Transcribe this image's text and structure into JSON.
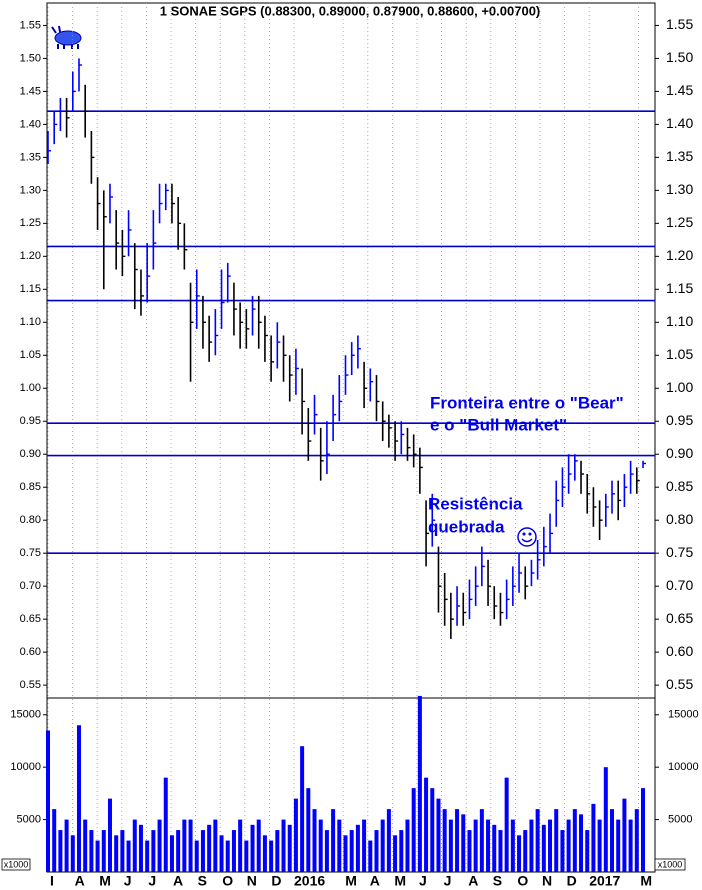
{
  "chart_data": [
    {
      "type": "ohlc",
      "title": "1 SONAE SGPS (0.88300, 0.89000, 0.87900, 0.88600, +0.00700)",
      "categories": [
        "I",
        "A",
        "M",
        "J",
        "J",
        "A",
        "S",
        "O",
        "N",
        "D",
        "2016",
        "M",
        "A",
        "M",
        "J",
        "J",
        "A",
        "S",
        "O",
        "N",
        "D",
        "2017",
        "M"
      ],
      "high": [
        1.39,
        1.42,
        1.44,
        1.44,
        1.48,
        1.5,
        1.46,
        1.39,
        1.32,
        1.3,
        1.31,
        1.27,
        1.24,
        1.27,
        1.22,
        1.18,
        1.22,
        1.27,
        1.31,
        1.31,
        1.31,
        1.29,
        1.25,
        1.16,
        1.18,
        1.14,
        1.11,
        1.12,
        1.18,
        1.19,
        1.16,
        1.13,
        1.12,
        1.14,
        1.14,
        1.11,
        1.08,
        1.1,
        1.08,
        1.05,
        1.06,
        1.03,
        0.97,
        0.99,
        0.94,
        0.95,
        0.99,
        1.02,
        1.05,
        1.07,
        1.08,
        1.04,
        1.03,
        1.02,
        0.98,
        0.96,
        0.95,
        0.95,
        0.94,
        0.93,
        0.91,
        0.83,
        0.84,
        0.76,
        0.72,
        0.69,
        0.7,
        0.69,
        0.71,
        0.73,
        0.76,
        0.74,
        0.7,
        0.69,
        0.71,
        0.73,
        0.75,
        0.73,
        0.74,
        0.77,
        0.79,
        0.81,
        0.86,
        0.88,
        0.9,
        0.9,
        0.89,
        0.87,
        0.85,
        0.83,
        0.84,
        0.86,
        0.86,
        0.87,
        0.89,
        0.88,
        0.89
      ],
      "low": [
        1.34,
        1.37,
        1.39,
        1.38,
        1.42,
        1.45,
        1.38,
        1.31,
        1.24,
        1.15,
        1.25,
        1.18,
        1.17,
        1.2,
        1.12,
        1.11,
        1.13,
        1.18,
        1.25,
        1.27,
        1.25,
        1.21,
        1.18,
        1.01,
        1.09,
        1.06,
        1.04,
        1.05,
        1.09,
        1.13,
        1.08,
        1.06,
        1.06,
        1.08,
        1.06,
        1.04,
        1.01,
        1.03,
        1.01,
        0.98,
        0.99,
        0.93,
        0.89,
        0.93,
        0.86,
        0.87,
        0.92,
        0.95,
        0.99,
        1.02,
        1.03,
        0.97,
        0.98,
        0.95,
        0.92,
        0.91,
        0.89,
        0.9,
        0.89,
        0.88,
        0.84,
        0.73,
        0.76,
        0.66,
        0.64,
        0.62,
        0.64,
        0.64,
        0.65,
        0.67,
        0.7,
        0.67,
        0.65,
        0.64,
        0.65,
        0.67,
        0.69,
        0.68,
        0.7,
        0.71,
        0.73,
        0.75,
        0.79,
        0.82,
        0.84,
        0.86,
        0.84,
        0.81,
        0.79,
        0.77,
        0.79,
        0.81,
        0.8,
        0.82,
        0.84,
        0.84,
        0.879
      ],
      "close": [
        1.36,
        1.4,
        1.42,
        1.41,
        1.45,
        1.49,
        1.42,
        1.35,
        1.28,
        1.26,
        1.29,
        1.22,
        1.2,
        1.24,
        1.18,
        1.14,
        1.17,
        1.22,
        1.28,
        1.3,
        1.28,
        1.25,
        1.21,
        1.1,
        1.14,
        1.1,
        1.07,
        1.08,
        1.13,
        1.17,
        1.12,
        1.1,
        1.09,
        1.12,
        1.1,
        1.08,
        1.04,
        1.07,
        1.05,
        1.02,
        1.03,
        0.98,
        0.92,
        0.96,
        0.89,
        0.9,
        0.96,
        0.98,
        1.02,
        1.05,
        1.06,
        1.0,
        1.01,
        0.98,
        0.95,
        0.94,
        0.92,
        0.93,
        0.91,
        0.9,
        0.88,
        0.78,
        0.8,
        0.7,
        0.68,
        0.65,
        0.67,
        0.66,
        0.68,
        0.7,
        0.73,
        0.7,
        0.67,
        0.66,
        0.68,
        0.7,
        0.72,
        0.7,
        0.72,
        0.74,
        0.76,
        0.78,
        0.83,
        0.85,
        0.87,
        0.89,
        0.87,
        0.84,
        0.82,
        0.8,
        0.82,
        0.84,
        0.83,
        0.85,
        0.87,
        0.86,
        0.886
      ],
      "up_color": "#0000ff",
      "down_color": "#000000",
      "hlines": [
        1.42,
        1.215,
        1.133,
        0.947,
        0.898,
        0.75
      ],
      "hline_color": "#0000cc",
      "ylim": [
        0.532,
        1.584
      ],
      "yticks": [
        1.55,
        {
          "value": 1.5,
          "label": "1.50"
        },
        1.45,
        {
          "value": 1.4,
          "label": "1.40"
        },
        1.35,
        {
          "value": 1.3,
          "label": "1.30"
        },
        1.25,
        {
          "value": 1.2,
          "label": "1.20"
        },
        1.15,
        {
          "value": 1.1,
          "label": "1.10"
        },
        1.05,
        {
          "value": 1.0,
          "label": "1.00"
        },
        0.95,
        {
          "value": 0.9,
          "label": "0.90"
        },
        0.85,
        {
          "value": 0.8,
          "label": "0.80"
        },
        0.75,
        {
          "value": 0.7,
          "label": "0.70"
        },
        0.65,
        {
          "value": 0.6,
          "label": "0.60"
        },
        0.55
      ],
      "annotations": [
        "Fronteira entre o \"Bear\"",
        "e o \"Bull Market\"",
        "Resistência",
        "quebrada"
      ]
    },
    {
      "type": "bar",
      "unit_label": "x1000",
      "color": "#0000ff",
      "values": [
        13500,
        6000,
        4000,
        5000,
        3500,
        14000,
        5000,
        4000,
        3000,
        4000,
        7000,
        3500,
        4000,
        3000,
        5000,
        4500,
        3000,
        4000,
        5000,
        9000,
        3500,
        4000,
        5000,
        5000,
        3000,
        4000,
        4500,
        5000,
        3500,
        3000,
        4000,
        5000,
        3000,
        4500,
        5000,
        3500,
        3000,
        4000,
        5000,
        4500,
        7000,
        12000,
        8000,
        6000,
        5000,
        4000,
        6000,
        5000,
        3500,
        4000,
        4500,
        5000,
        3000,
        4000,
        5000,
        6000,
        3500,
        4000,
        5000,
        8000,
        16800,
        9000,
        8000,
        7000,
        6000,
        5000,
        6000,
        5500,
        4000,
        5000,
        6000,
        5000,
        4500,
        4000,
        9000,
        5000,
        3500,
        4000,
        5000,
        6000,
        4500,
        5000,
        6000,
        4000,
        5000,
        6000,
        5500,
        4000,
        6500,
        5000,
        10000,
        6000,
        5000,
        7000,
        5000,
        6000,
        8000
      ],
      "ylim": [
        0,
        16600
      ],
      "yticks": [
        5000,
        10000,
        15000
      ]
    }
  ]
}
